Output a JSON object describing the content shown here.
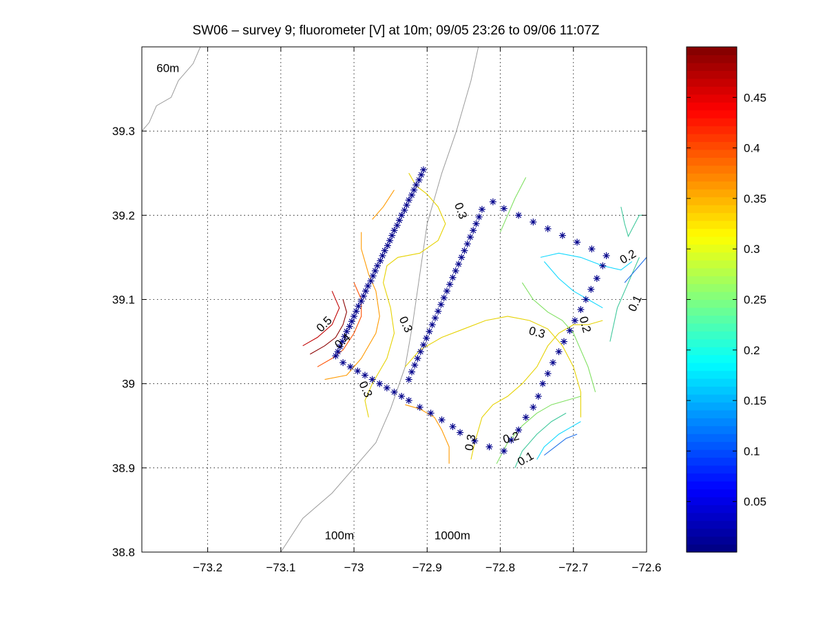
{
  "chart_data": {
    "type": "contour",
    "title": "SW06 – survey 9; fluorometer [V] at 10m; 09/05 23:26 to 09/06 11:07Z",
    "xlabel": "",
    "ylabel": "",
    "xlim": [
      -73.29,
      -72.6
    ],
    "ylim": [
      38.8,
      39.4
    ],
    "xticks": [
      -73.2,
      -73.1,
      -73.0,
      -72.9,
      -72.8,
      -72.7,
      -72.6
    ],
    "xtick_labels": [
      "−73.2",
      "−73.1",
      "−73",
      "−72.9",
      "−72.8",
      "−72.7",
      "−72.6"
    ],
    "yticks": [
      38.8,
      38.9,
      39.0,
      39.1,
      39.2,
      39.3
    ],
    "ytick_labels": [
      "38.8",
      "38.9",
      "39",
      "39.1",
      "39.2",
      "39.3"
    ],
    "grid": true,
    "colorbar": {
      "min": 0.0,
      "max": 0.5,
      "ticks": [
        0.05,
        0.1,
        0.15,
        0.2,
        0.25,
        0.3,
        0.35,
        0.4,
        0.45
      ],
      "tick_labels": [
        "0.05",
        "0.1",
        "0.15",
        "0.2",
        "0.25",
        "0.3",
        "0.35",
        "0.4",
        "0.45"
      ],
      "colormap": "jet"
    },
    "isobath_labels": [
      {
        "text": "60m",
        "x": -73.27,
        "y": 39.37
      },
      {
        "text": "100m",
        "x": -73.04,
        "y": 38.815
      },
      {
        "text": "1000m",
        "x": -72.89,
        "y": 38.815
      }
    ],
    "isobaths": [
      {
        "name": "100m",
        "points": [
          [
            -73.21,
            39.4
          ],
          [
            -73.22,
            39.38
          ],
          [
            -73.24,
            39.36
          ],
          [
            -73.25,
            39.34
          ],
          [
            -73.27,
            39.33
          ],
          [
            -73.28,
            39.31
          ],
          [
            -73.29,
            39.3
          ]
        ]
      },
      {
        "name": "1000m",
        "points": [
          [
            -72.83,
            39.4
          ],
          [
            -72.84,
            39.36
          ],
          [
            -72.85,
            39.33
          ],
          [
            -72.86,
            39.3
          ],
          [
            -72.88,
            39.25
          ],
          [
            -72.9,
            39.19
          ],
          [
            -72.91,
            39.13
          ],
          [
            -72.92,
            39.07
          ],
          [
            -72.93,
            39.02
          ],
          [
            -72.95,
            38.97
          ],
          [
            -72.97,
            38.93
          ],
          [
            -73.0,
            38.9
          ],
          [
            -73.03,
            38.87
          ],
          [
            -73.07,
            38.84
          ],
          [
            -73.1,
            38.8
          ]
        ]
      }
    ],
    "contours": [
      {
        "level": 0.5,
        "color": "#8b0000",
        "points": [
          [
            -73.06,
            39.035
          ],
          [
            -73.04,
            39.045
          ],
          [
            -73.025,
            39.055
          ],
          [
            -73.015,
            39.07
          ],
          [
            -73.01,
            39.085
          ],
          [
            -73.015,
            39.1
          ]
        ]
      },
      {
        "level": 0.45,
        "color": "#c00000",
        "points": [
          [
            -73.07,
            39.045
          ],
          [
            -73.05,
            39.055
          ],
          [
            -73.03,
            39.07
          ],
          [
            -73.02,
            39.09
          ],
          [
            -73.03,
            39.11
          ]
        ]
      },
      {
        "level": 0.4,
        "color": "#ff5000",
        "points": [
          [
            -73.05,
            39.02
          ],
          [
            -73.03,
            39.03
          ],
          [
            -73.015,
            39.04
          ],
          [
            -73.0,
            39.06
          ],
          [
            -72.99,
            39.08
          ],
          [
            -72.99,
            39.1
          ],
          [
            -73.0,
            39.12
          ]
        ]
      },
      {
        "level": 0.35,
        "color": "#ff9a00",
        "points": [
          [
            -73.04,
            39.005
          ],
          [
            -73.01,
            39.01
          ],
          [
            -72.99,
            39.03
          ],
          [
            -72.97,
            39.06
          ],
          [
            -72.965,
            39.08
          ],
          [
            -72.97,
            39.11
          ],
          [
            -72.98,
            39.13
          ],
          [
            -72.99,
            39.16
          ],
          [
            -72.99,
            39.18
          ]
        ]
      },
      {
        "level": 0.35,
        "color": "#ff9a00",
        "points": [
          [
            -72.945,
            39.23
          ],
          [
            -72.96,
            39.21
          ],
          [
            -72.975,
            39.195
          ]
        ]
      },
      {
        "level": 0.3,
        "color": "#e6d200",
        "points": [
          [
            -72.98,
            38.96
          ],
          [
            -72.985,
            38.98
          ],
          [
            -72.975,
            39.0
          ],
          [
            -72.955,
            39.03
          ],
          [
            -72.945,
            39.06
          ],
          [
            -72.95,
            39.09
          ],
          [
            -72.96,
            39.12
          ],
          [
            -72.955,
            39.14
          ],
          [
            -72.94,
            39.15
          ],
          [
            -72.91,
            39.155
          ],
          [
            -72.885,
            39.17
          ],
          [
            -72.875,
            39.19
          ],
          [
            -72.885,
            39.21
          ],
          [
            -72.9,
            39.225
          ],
          [
            -72.915,
            39.235
          ],
          [
            -72.925,
            39.25
          ]
        ]
      },
      {
        "level": 0.3,
        "color": "#e6d200",
        "points": [
          [
            -72.84,
            38.91
          ],
          [
            -72.835,
            38.93
          ],
          [
            -72.825,
            38.96
          ],
          [
            -72.81,
            38.975
          ],
          [
            -72.79,
            38.985
          ],
          [
            -72.77,
            39.0
          ],
          [
            -72.75,
            39.02
          ],
          [
            -72.735,
            39.045
          ],
          [
            -72.72,
            39.06
          ],
          [
            -72.7,
            39.07
          ],
          [
            -72.68,
            39.07
          ],
          [
            -72.66,
            39.075
          ]
        ]
      },
      {
        "level": 0.3,
        "color": "#e6d200",
        "points": [
          [
            -72.93,
            39.02
          ],
          [
            -72.91,
            39.04
          ],
          [
            -72.88,
            39.055
          ],
          [
            -72.85,
            39.065
          ],
          [
            -72.82,
            39.075
          ],
          [
            -72.79,
            39.08
          ],
          [
            -72.76,
            39.075
          ],
          [
            -72.735,
            39.065
          ],
          [
            -72.715,
            39.045
          ],
          [
            -72.7,
            39.02
          ],
          [
            -72.69,
            38.99
          ],
          [
            -72.69,
            38.96
          ]
        ]
      },
      {
        "level": 0.35,
        "color": "#ff9a00",
        "points": [
          [
            -72.93,
            38.975
          ],
          [
            -72.91,
            38.97
          ],
          [
            -72.89,
            38.96
          ],
          [
            -72.88,
            38.945
          ],
          [
            -72.87,
            38.925
          ],
          [
            -72.87,
            38.905
          ]
        ]
      },
      {
        "level": 0.25,
        "color": "#7fe060",
        "points": [
          [
            -72.805,
            38.905
          ],
          [
            -72.79,
            38.93
          ],
          [
            -72.77,
            38.95
          ],
          [
            -72.75,
            38.965
          ],
          [
            -72.73,
            38.975
          ],
          [
            -72.71,
            38.98
          ],
          [
            -72.69,
            38.985
          ]
        ]
      },
      {
        "level": 0.25,
        "color": "#7fe060",
        "points": [
          [
            -72.77,
            39.12
          ],
          [
            -72.755,
            39.1
          ],
          [
            -72.735,
            39.085
          ],
          [
            -72.715,
            39.075
          ],
          [
            -72.7,
            39.06
          ],
          [
            -72.69,
            39.04
          ],
          [
            -72.68,
            39.02
          ],
          [
            -72.67,
            38.99
          ]
        ]
      },
      {
        "level": 0.25,
        "color": "#7fe060",
        "points": [
          [
            -72.765,
            39.245
          ],
          [
            -72.78,
            39.22
          ],
          [
            -72.79,
            39.2
          ],
          [
            -72.8,
            39.18
          ]
        ]
      },
      {
        "level": 0.2,
        "color": "#3ec89b",
        "points": [
          [
            -72.78,
            38.9
          ],
          [
            -72.77,
            38.92
          ],
          [
            -72.75,
            38.94
          ],
          [
            -72.73,
            38.955
          ],
          [
            -72.71,
            38.965
          ]
        ]
      },
      {
        "level": 0.2,
        "color": "#3ec89b",
        "points": [
          [
            -72.65,
            39.05
          ],
          [
            -72.64,
            39.09
          ],
          [
            -72.62,
            39.13
          ],
          [
            -72.61,
            39.15
          ]
        ]
      },
      {
        "level": 0.2,
        "color": "#3ec89b",
        "points": [
          [
            -72.635,
            39.21
          ],
          [
            -72.63,
            39.19
          ],
          [
            -72.625,
            39.175
          ],
          [
            -72.61,
            39.2
          ],
          [
            -72.605,
            39.2
          ]
        ]
      },
      {
        "level": 0.15,
        "color": "#10d8ff",
        "points": [
          [
            -72.75,
            38.91
          ],
          [
            -72.74,
            38.925
          ],
          [
            -72.72,
            38.94
          ],
          [
            -72.7,
            38.95
          ],
          [
            -72.69,
            38.955
          ]
        ]
      },
      {
        "level": 0.15,
        "color": "#10d8ff",
        "points": [
          [
            -72.745,
            39.15
          ],
          [
            -72.72,
            39.155
          ],
          [
            -72.69,
            39.15
          ],
          [
            -72.66,
            39.14
          ],
          [
            -72.635,
            39.135
          ],
          [
            -72.62,
            39.145
          ]
        ]
      },
      {
        "level": 0.15,
        "color": "#10d8ff",
        "points": [
          [
            -72.74,
            39.145
          ],
          [
            -72.72,
            39.125
          ],
          [
            -72.7,
            39.11
          ],
          [
            -72.68,
            39.1
          ],
          [
            -72.66,
            39.09
          ]
        ]
      },
      {
        "level": 0.1,
        "color": "#1c6ee8",
        "points": [
          [
            -72.74,
            38.915
          ],
          [
            -72.725,
            38.925
          ],
          [
            -72.71,
            38.935
          ],
          [
            -72.695,
            38.94
          ]
        ]
      },
      {
        "level": 0.1,
        "color": "#1c6ee8",
        "points": [
          [
            -72.63,
            39.12
          ],
          [
            -72.62,
            39.13
          ],
          [
            -72.61,
            39.14
          ],
          [
            -72.6,
            39.15
          ]
        ]
      }
    ],
    "contour_labels": [
      {
        "text": "0.5",
        "x": -73.04,
        "y": 39.07,
        "angle": -45
      },
      {
        "text": "0.4",
        "x": -73.015,
        "y": 39.05,
        "angle": -40
      },
      {
        "text": "0.3",
        "x": -72.985,
        "y": 38.993,
        "angle": 65
      },
      {
        "text": "0.3",
        "x": -72.93,
        "y": 39.07,
        "angle": 65
      },
      {
        "text": "0.3",
        "x": -72.855,
        "y": 39.205,
        "angle": 70
      },
      {
        "text": "0.3",
        "x": -72.75,
        "y": 39.06,
        "angle": 15
      },
      {
        "text": "0.3",
        "x": -72.84,
        "y": 38.93,
        "angle": -80
      },
      {
        "text": "0.2",
        "x": -72.785,
        "y": 38.935,
        "angle": -15
      },
      {
        "text": "0.1",
        "x": -72.765,
        "y": 38.91,
        "angle": -30
      },
      {
        "text": "0.2",
        "x": -72.685,
        "y": 39.07,
        "angle": 75
      },
      {
        "text": "0.2",
        "x": -72.625,
        "y": 39.15,
        "angle": -30
      },
      {
        "text": "0.1",
        "x": -72.615,
        "y": 39.095,
        "angle": -65
      }
    ],
    "stations": [
      [
        -73.025,
        39.033
      ],
      [
        -73.022,
        39.038
      ],
      [
        -73.019,
        39.044
      ],
      [
        -73.016,
        39.05
      ],
      [
        -73.013,
        39.056
      ],
      [
        -73.01,
        39.062
      ],
      [
        -73.006,
        39.068
      ],
      [
        -73.003,
        39.074
      ],
      [
        -73.0,
        39.08
      ],
      [
        -72.997,
        39.086
      ],
      [
        -72.994,
        39.092
      ],
      [
        -72.99,
        39.098
      ],
      [
        -72.987,
        39.104
      ],
      [
        -72.984,
        39.11
      ],
      [
        -72.981,
        39.116
      ],
      [
        -72.977,
        39.122
      ],
      [
        -72.974,
        39.128
      ],
      [
        -72.971,
        39.134
      ],
      [
        -72.968,
        39.14
      ],
      [
        -72.964,
        39.146
      ],
      [
        -72.961,
        39.152
      ],
      [
        -72.958,
        39.158
      ],
      [
        -72.954,
        39.164
      ],
      [
        -72.951,
        39.17
      ],
      [
        -72.948,
        39.176
      ],
      [
        -72.945,
        39.182
      ],
      [
        -72.941,
        39.188
      ],
      [
        -72.938,
        39.194
      ],
      [
        -72.935,
        39.2
      ],
      [
        -72.931,
        39.206
      ],
      [
        -72.928,
        39.212
      ],
      [
        -72.925,
        39.218
      ],
      [
        -72.921,
        39.224
      ],
      [
        -72.918,
        39.23
      ],
      [
        -72.915,
        39.236
      ],
      [
        -72.911,
        39.242
      ],
      [
        -72.908,
        39.248
      ],
      [
        -72.905,
        39.254
      ],
      [
        -73.015,
        39.025
      ],
      [
        -73.005,
        39.02
      ],
      [
        -72.995,
        39.015
      ],
      [
        -72.985,
        39.01
      ],
      [
        -72.975,
        39.005
      ],
      [
        -72.965,
        39.0
      ],
      [
        -72.955,
        38.995
      ],
      [
        -72.945,
        38.99
      ],
      [
        -72.935,
        38.985
      ],
      [
        -72.925,
        38.98
      ],
      [
        -72.91,
        38.972
      ],
      [
        -72.895,
        38.965
      ],
      [
        -72.88,
        38.957
      ],
      [
        -72.865,
        38.949
      ],
      [
        -72.855,
        38.942
      ],
      [
        -72.925,
        39.005
      ],
      [
        -72.921,
        39.014
      ],
      [
        -72.917,
        39.022
      ],
      [
        -72.913,
        39.03
      ],
      [
        -72.909,
        39.038
      ],
      [
        -72.905,
        39.046
      ],
      [
        -72.901,
        39.054
      ],
      [
        -72.897,
        39.062
      ],
      [
        -72.893,
        39.07
      ],
      [
        -72.889,
        39.078
      ],
      [
        -72.885,
        39.086
      ],
      [
        -72.881,
        39.094
      ],
      [
        -72.877,
        39.102
      ],
      [
        -72.873,
        39.11
      ],
      [
        -72.869,
        39.118
      ],
      [
        -72.865,
        39.126
      ],
      [
        -72.861,
        39.134
      ],
      [
        -72.857,
        39.142
      ],
      [
        -72.853,
        39.15
      ],
      [
        -72.849,
        39.158
      ],
      [
        -72.845,
        39.166
      ],
      [
        -72.841,
        39.174
      ],
      [
        -72.837,
        39.182
      ],
      [
        -72.833,
        39.19
      ],
      [
        -72.829,
        39.198
      ],
      [
        -72.825,
        39.207
      ],
      [
        -72.81,
        39.216
      ],
      [
        -72.835,
        38.932
      ],
      [
        -72.815,
        38.925
      ],
      [
        -72.795,
        38.92
      ],
      [
        -72.785,
        38.933
      ],
      [
        -72.775,
        38.945
      ],
      [
        -72.765,
        38.96
      ],
      [
        -72.755,
        38.972
      ],
      [
        -72.748,
        38.985
      ],
      [
        -72.742,
        39.0
      ],
      [
        -72.735,
        39.012
      ],
      [
        -72.728,
        39.025
      ],
      [
        -72.72,
        39.038
      ],
      [
        -72.713,
        39.05
      ],
      [
        -72.705,
        39.063
      ],
      [
        -72.698,
        39.075
      ],
      [
        -72.69,
        39.088
      ],
      [
        -72.683,
        39.1
      ],
      [
        -72.676,
        39.112
      ],
      [
        -72.668,
        39.125
      ],
      [
        -72.66,
        39.14
      ],
      [
        -72.655,
        39.152
      ],
      [
        -72.795,
        39.208
      ],
      [
        -72.775,
        39.2
      ],
      [
        -72.755,
        39.192
      ],
      [
        -72.735,
        39.184
      ],
      [
        -72.715,
        39.176
      ],
      [
        -72.695,
        39.168
      ],
      [
        -72.675,
        39.16
      ]
    ]
  }
}
